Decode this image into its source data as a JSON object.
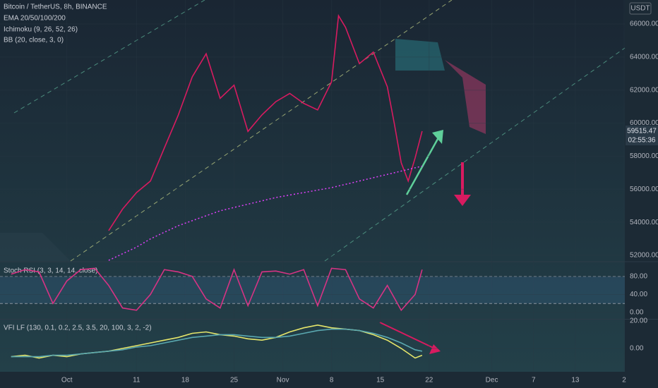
{
  "chart_data": [
    {
      "type": "line",
      "title": "Bitcoin / TetherUS, 8h, BINANCE",
      "indicators": [
        "EMA 20/50/100/200",
        "Ichimoku (9, 26, 52, 26)",
        "BB (20, close, 3, 0)"
      ],
      "currency": "USDT",
      "countdown": "02:55:36",
      "x": [
        6,
        8,
        10,
        12,
        14,
        16,
        18,
        20,
        22,
        24,
        26,
        28,
        30,
        32,
        34,
        36,
        38,
        39,
        40,
        42,
        44,
        46,
        47,
        48,
        49,
        50,
        51
      ],
      "series": [
        {
          "color": "#d81b60",
          "values": [
            53500,
            54800,
            55800,
            56500,
            58500,
            60500,
            62800,
            64200,
            61500,
            62300,
            59500,
            60500,
            61300,
            61800,
            61200,
            60800,
            62500,
            66500,
            65800,
            63600,
            64300,
            62200,
            60000,
            57600,
            56500,
            57900,
            59515.47
          ]
        },
        {
          "color": "#e040fb",
          "values": [
            51700,
            52100,
            52500,
            53000,
            53400,
            53800,
            54100,
            54400,
            54700,
            54900,
            55100,
            55300,
            55500,
            55650,
            55800,
            55950,
            56100,
            56200,
            56300,
            56500,
            56700,
            56900,
            57000,
            57100,
            57200,
            57300,
            57400
          ]
        }
      ],
      "xlim": [
        -9.6,
        80.1
      ],
      "xticks": [
        {
          "value": 0,
          "label": "Oct"
        },
        {
          "value": 10,
          "label": "11"
        },
        {
          "value": 17,
          "label": "18"
        },
        {
          "value": 24,
          "label": "25"
        },
        {
          "value": 31,
          "label": "Nov"
        },
        {
          "value": 38,
          "label": "8"
        },
        {
          "value": 45,
          "label": "15"
        },
        {
          "value": 52,
          "label": "22"
        },
        {
          "value": 61,
          "label": "Dec"
        },
        {
          "value": 67,
          "label": "7"
        },
        {
          "value": 73,
          "label": "13"
        },
        {
          "value": 80,
          "label": "2"
        }
      ],
      "ylim": [
        51660,
        67450
      ],
      "yticks": [
        {
          "value": 52000,
          "label": "52000.00"
        },
        {
          "value": 54000,
          "label": "54000.00"
        },
        {
          "value": 56000,
          "label": "56000.00"
        },
        {
          "value": 58000,
          "label": "58000.00"
        },
        {
          "value": 60000,
          "label": "60000.00"
        },
        {
          "value": 62000,
          "label": "62000.00"
        },
        {
          "value": 64000,
          "label": "64000.00"
        },
        {
          "value": 66000,
          "label": "66000.00"
        }
      ]
    },
    {
      "type": "line",
      "title": "Stoch RSI (3, 3, 14, 14, close)",
      "x": [
        -8,
        -6,
        -4,
        -2,
        0,
        2,
        4,
        6,
        8,
        10,
        12,
        14,
        16,
        18,
        20,
        22,
        24,
        26,
        28,
        30,
        32,
        34,
        36,
        38,
        40,
        42,
        44,
        46,
        48,
        50,
        51
      ],
      "series": [
        {
          "color": "#d63384",
          "values": [
            85,
            95,
            90,
            20,
            70,
            95,
            98,
            60,
            10,
            5,
            40,
            95,
            90,
            80,
            30,
            10,
            95,
            15,
            90,
            92,
            85,
            95,
            15,
            98,
            95,
            30,
            10,
            60,
            5,
            40,
            95
          ]
        }
      ],
      "bands": [
        20,
        80
      ],
      "ylim": [
        -14,
        111
      ],
      "yticks": [
        {
          "value": 0,
          "label": "0.00"
        },
        {
          "value": 40,
          "label": "40.00"
        },
        {
          "value": 80,
          "label": "80.00"
        }
      ]
    },
    {
      "type": "line",
      "title": "VFI LF (130, 0.1, 0.2, 2.5, 3.5, 20, 100, 3, 2, -2)",
      "x": [
        -8,
        -6,
        -4,
        -2,
        0,
        2,
        4,
        6,
        8,
        10,
        12,
        14,
        16,
        18,
        20,
        22,
        24,
        26,
        28,
        30,
        32,
        34,
        36,
        38,
        40,
        42,
        44,
        46,
        48,
        50,
        51
      ],
      "series": [
        {
          "color": "#e6e66a",
          "values": [
            -6,
            -5,
            -7,
            -5,
            -6,
            -4,
            -3,
            -2,
            0,
            2,
            4,
            6,
            8,
            11,
            12,
            10,
            9,
            7,
            6,
            8,
            12,
            15,
            17,
            15,
            14,
            13,
            10,
            6,
            0,
            -7,
            -5
          ]
        },
        {
          "color": "#5aa8b0",
          "values": [
            -6,
            -6,
            -6,
            -5,
            -5,
            -4,
            -3,
            -2,
            -1,
            1,
            2,
            4,
            6,
            8,
            9,
            10,
            10,
            9,
            8,
            8,
            9,
            11,
            13,
            14,
            14,
            13,
            11,
            8,
            4,
            -1,
            -2
          ]
        }
      ],
      "ylim": [
        -17,
        21
      ],
      "yticks": [
        {
          "value": 0,
          "label": "0.00"
        },
        {
          "value": 20,
          "label": "20.00"
        }
      ]
    }
  ]
}
